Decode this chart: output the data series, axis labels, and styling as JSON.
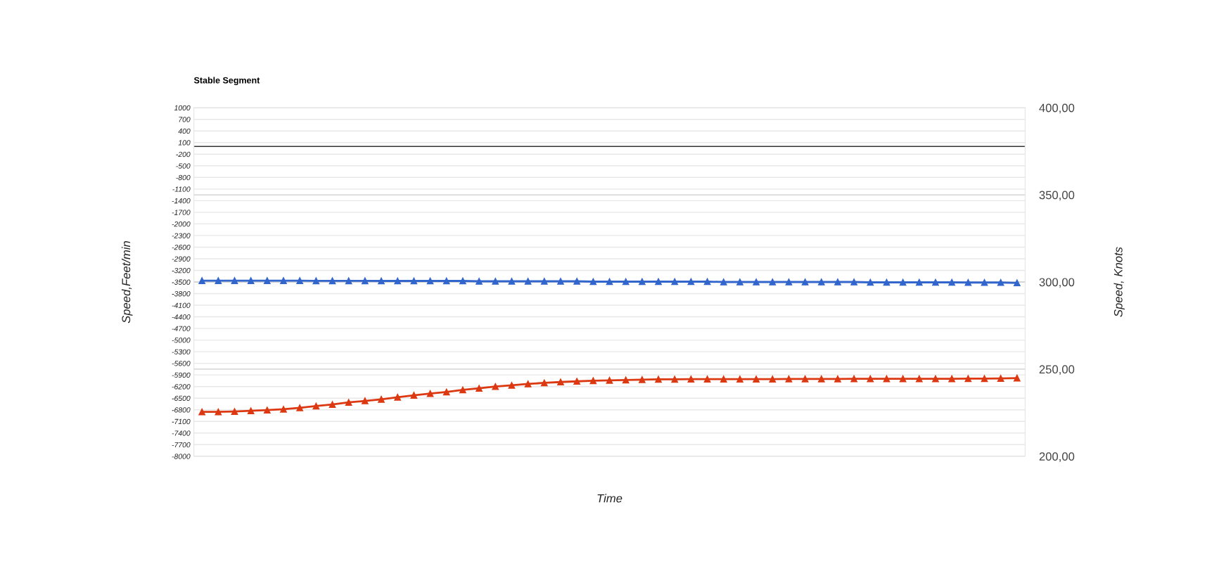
{
  "chart_data": {
    "type": "line",
    "title": "Stable Segment",
    "xlabel": "Time",
    "ylabel": "Speed,Feet/min",
    "y2label": "Speed, Knots",
    "categories": [
      null,
      null,
      null,
      null,
      null,
      null,
      null,
      null,
      null,
      null,
      null,
      null,
      null,
      null,
      null,
      null,
      null,
      null,
      null,
      null,
      null,
      null,
      null,
      null,
      null,
      null,
      null,
      null,
      null,
      null,
      null,
      null,
      null,
      null,
      null,
      null,
      null,
      null,
      null,
      null,
      null,
      null,
      null,
      null,
      null,
      null,
      null,
      null,
      null,
      null,
      null
    ],
    "series": [
      {
        "color": "#3366cc",
        "axis": "y2",
        "values": [
          300.8,
          300.8,
          300.8,
          300.8,
          300.8,
          300.8,
          300.8,
          300.7,
          300.7,
          300.7,
          300.7,
          300.6,
          300.6,
          300.6,
          300.6,
          300.6,
          300.6,
          300.4,
          300.4,
          300.4,
          300.4,
          300.4,
          300.4,
          300.4,
          300.2,
          300.2,
          300.2,
          300.2,
          300.2,
          300.2,
          300.2,
          300.2,
          300.0,
          300.0,
          300.0,
          300.0,
          300.0,
          300.0,
          300.0,
          300.0,
          300.0,
          299.8,
          299.8,
          299.8,
          299.8,
          299.8,
          299.8,
          299.7,
          299.7,
          299.7,
          299.5
        ]
      },
      {
        "color": "#dc3912",
        "axis": "y2",
        "values": [
          225.5,
          225.5,
          225.7,
          226.1,
          226.5,
          227.0,
          227.8,
          228.8,
          229.7,
          230.9,
          231.8,
          232.7,
          233.9,
          235.0,
          236.0,
          236.9,
          238.1,
          239.0,
          240.0,
          240.7,
          241.5,
          242.1,
          242.6,
          243.0,
          243.4,
          243.6,
          243.8,
          244.0,
          244.2,
          244.2,
          244.3,
          244.3,
          244.3,
          244.3,
          244.3,
          244.3,
          244.4,
          244.4,
          244.4,
          244.4,
          244.5,
          244.5,
          244.5,
          244.5,
          244.5,
          244.5,
          244.5,
          244.6,
          244.6,
          244.7,
          244.9
        ]
      }
    ],
    "ylim": [
      -8000,
      1000
    ],
    "yticks": [
      1000,
      700,
      400,
      100,
      -200,
      -500,
      -800,
      -1100,
      -1400,
      -1700,
      -2000,
      -2300,
      -2600,
      -2900,
      -3200,
      -3500,
      -3800,
      -4100,
      -4400,
      -4700,
      -5000,
      -5300,
      -5600,
      -5900,
      -6200,
      -6500,
      -6800,
      -7100,
      -7400,
      -7700,
      -8000
    ],
    "y2lim": [
      200,
      400
    ],
    "y2ticks": [
      {
        "value": 200,
        "label": "200,00"
      },
      {
        "value": 250,
        "label": "250,00"
      },
      {
        "value": 300,
        "label": "300,00"
      },
      {
        "value": 350,
        "label": "350,00"
      },
      {
        "value": 400,
        "label": "400,00"
      }
    ],
    "ref_lines": [
      {
        "axis": "y",
        "value": 0,
        "color": "#333333"
      }
    ],
    "grid": "y",
    "marker": "triangle",
    "line_style": "solid"
  }
}
